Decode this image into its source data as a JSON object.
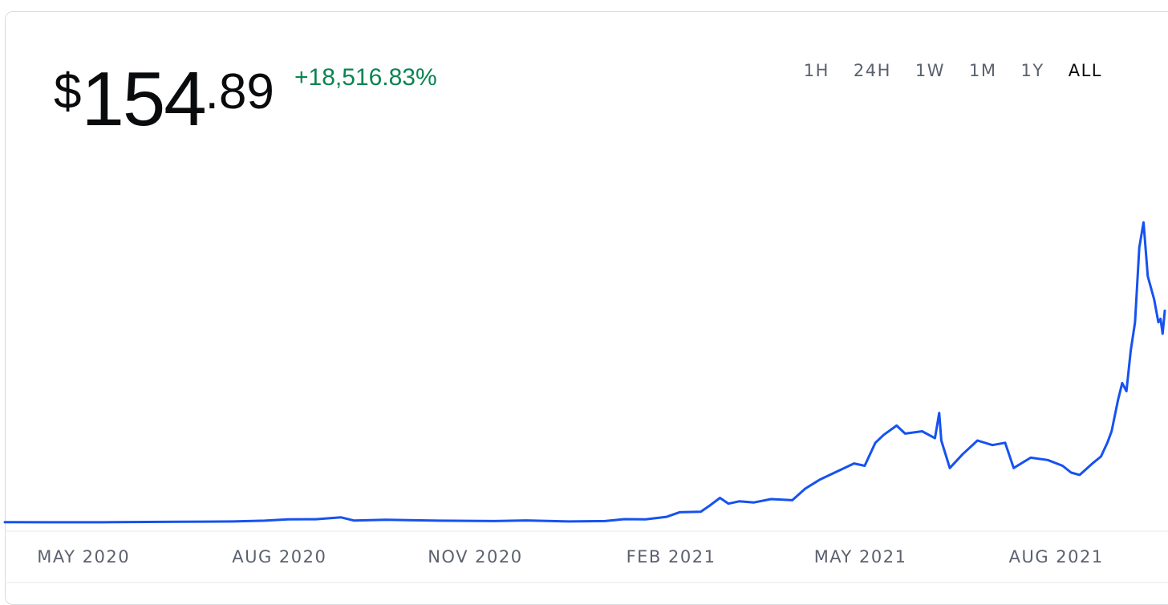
{
  "price": {
    "symbol": "$",
    "integer": "154",
    "decimal": ".89"
  },
  "change": "+18,516.83%",
  "ranges": [
    {
      "label": "1H",
      "active": false
    },
    {
      "label": "24H",
      "active": false
    },
    {
      "label": "1W",
      "active": false
    },
    {
      "label": "1M",
      "active": false
    },
    {
      "label": "1Y",
      "active": false
    },
    {
      "label": "ALL",
      "active": true
    }
  ],
  "colors": {
    "line": "#1652f0",
    "positive": "#098551",
    "axis": "#5b616e"
  },
  "chart_data": {
    "type": "line",
    "xlabel": "",
    "ylabel": "",
    "grid": false,
    "x_tick_labels": [
      "MAY 2020",
      "AUG 2020",
      "NOV 2020",
      "FEB 2021",
      "MAY 2021",
      "AUG 2021"
    ],
    "x_tick_dates": [
      "2020-05-01",
      "2020-08-01",
      "2020-11-01",
      "2021-02-01",
      "2021-05-01",
      "2021-08-01"
    ],
    "xlim": [
      "2020-03-25",
      "2021-09-06"
    ],
    "ylim": [
      0,
      260
    ],
    "series": [
      {
        "values": [
          [
            "2020-03-25",
            0.83
          ],
          [
            "2020-04-15",
            0.8
          ],
          [
            "2020-05-15",
            0.85
          ],
          [
            "2020-06-15",
            1.2
          ],
          [
            "2020-07-10",
            1.5
          ],
          [
            "2020-07-25",
            2.2
          ],
          [
            "2020-08-05",
            3.3
          ],
          [
            "2020-08-18",
            3.4
          ],
          [
            "2020-08-30",
            5.0
          ],
          [
            "2020-09-05",
            2.3
          ],
          [
            "2020-09-20",
            3.0
          ],
          [
            "2020-10-15",
            2.2
          ],
          [
            "2020-11-10",
            1.8
          ],
          [
            "2020-11-25",
            2.4
          ],
          [
            "2020-12-15",
            1.5
          ],
          [
            "2021-01-01",
            1.8
          ],
          [
            "2021-01-10",
            3.5
          ],
          [
            "2021-01-20",
            3.3
          ],
          [
            "2021-01-30",
            5.5
          ],
          [
            "2021-02-05",
            9.5
          ],
          [
            "2021-02-15",
            10.0
          ],
          [
            "2021-02-19",
            15.0
          ],
          [
            "2021-02-24",
            22.0
          ],
          [
            "2021-02-28",
            17.0
          ],
          [
            "2021-03-05",
            19.0
          ],
          [
            "2021-03-12",
            18.0
          ],
          [
            "2021-03-20",
            21.0
          ],
          [
            "2021-03-30",
            20.0
          ],
          [
            "2021-04-05",
            30.0
          ],
          [
            "2021-04-12",
            38.0
          ],
          [
            "2021-04-20",
            45.0
          ],
          [
            "2021-04-28",
            52.0
          ],
          [
            "2021-05-03",
            50.0
          ],
          [
            "2021-05-08",
            70.0
          ],
          [
            "2021-05-12",
            77.0
          ],
          [
            "2021-05-18",
            85.0
          ],
          [
            "2021-05-22",
            78.0
          ],
          [
            "2021-05-30",
            80.0
          ],
          [
            "2021-06-05",
            74.0
          ],
          [
            "2021-06-07",
            96.0
          ],
          [
            "2021-06-08",
            72.0
          ],
          [
            "2021-06-12",
            48.0
          ],
          [
            "2021-06-18",
            60.0
          ],
          [
            "2021-06-25",
            72.0
          ],
          [
            "2021-07-02",
            68.0
          ],
          [
            "2021-07-08",
            70.0
          ],
          [
            "2021-07-12",
            48.0
          ],
          [
            "2021-07-20",
            57.0
          ],
          [
            "2021-07-28",
            55.0
          ],
          [
            "2021-08-04",
            50.0
          ],
          [
            "2021-08-08",
            44.0
          ],
          [
            "2021-08-12",
            42.0
          ],
          [
            "2021-08-18",
            52.0
          ],
          [
            "2021-08-22",
            58.0
          ],
          [
            "2021-08-25",
            70.0
          ],
          [
            "2021-08-27",
            80.0
          ],
          [
            "2021-08-30",
            107.0
          ],
          [
            "2021-09-01",
            122.0
          ],
          [
            "2021-09-03",
            115.0
          ],
          [
            "2021-09-05",
            150.0
          ],
          [
            "2021-09-07",
            175.0
          ],
          [
            "2021-09-09",
            240.0
          ],
          [
            "2021-09-11",
            262.0
          ],
          [
            "2021-09-13",
            215.0
          ],
          [
            "2021-09-16",
            195.0
          ],
          [
            "2021-09-18",
            175.0
          ],
          [
            "2021-09-19",
            178.0
          ],
          [
            "2021-09-20",
            165.0
          ],
          [
            "2021-09-21",
            185.0
          ]
        ]
      }
    ]
  }
}
